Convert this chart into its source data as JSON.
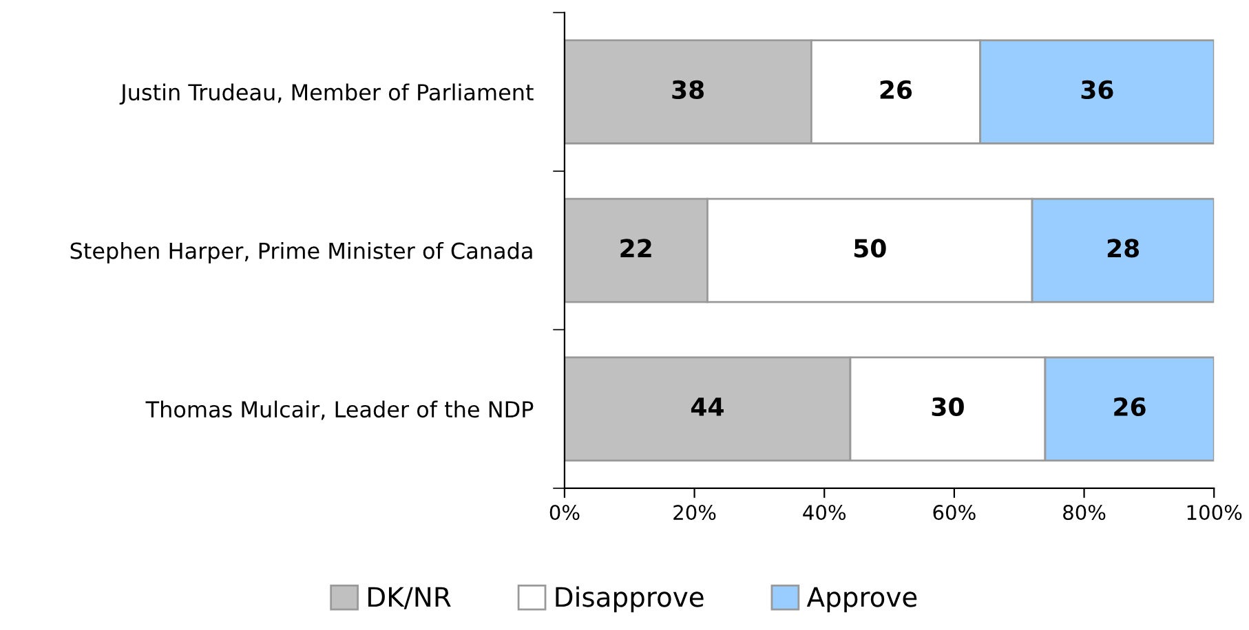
{
  "chart_data": {
    "type": "bar",
    "orientation": "horizontal",
    "stacked": true,
    "categories": [
      "Justin Trudeau, Member of Parliament",
      "Stephen Harper, Prime Minister of Canada",
      "Thomas Mulcair, Leader of the NDP"
    ],
    "series": [
      {
        "name": "DK/NR",
        "color": "#c0c0c0",
        "values": [
          38,
          22,
          44
        ]
      },
      {
        "name": "Disapprove",
        "color": "#ffffff",
        "values": [
          26,
          50,
          30
        ]
      },
      {
        "name": "Approve",
        "color": "#99ccff",
        "values": [
          36,
          28,
          26
        ]
      }
    ],
    "xlim": [
      0,
      100
    ],
    "xticks": [
      {
        "value": 0,
        "label": "0%"
      },
      {
        "value": 20,
        "label": "20%"
      },
      {
        "value": 40,
        "label": "40%"
      },
      {
        "value": 60,
        "label": "60%"
      },
      {
        "value": 80,
        "label": "80%"
      },
      {
        "value": 100,
        "label": "100%"
      }
    ],
    "data_labels": true,
    "grid": false,
    "legend": "bottom"
  }
}
